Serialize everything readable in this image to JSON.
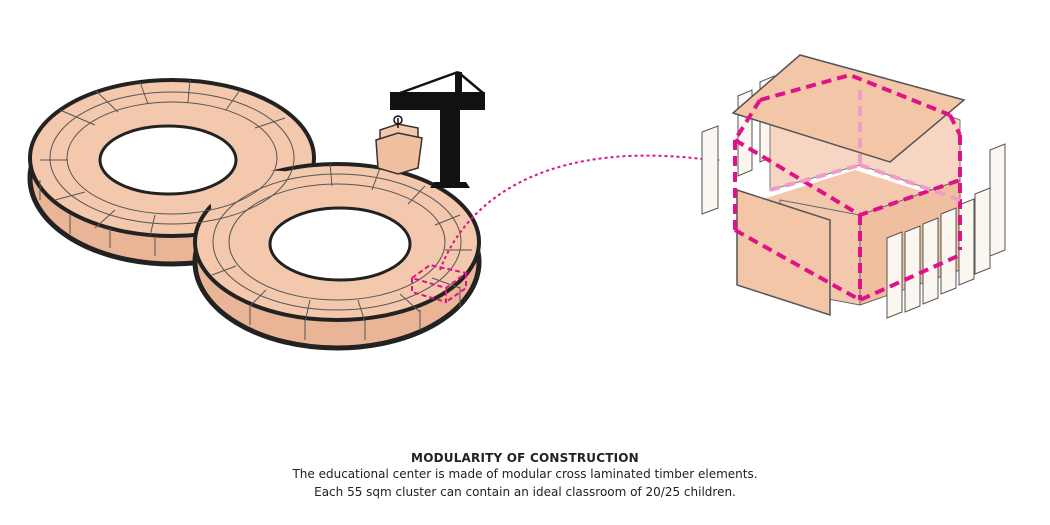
{
  "caption": {
    "title": "MODULARITY OF CONSTRUCTION",
    "line1": "The educational center is made of modular cross laminated timber elements.",
    "line2": "Each 55 sqm cluster can contain an ideal classroom of 20/25 children."
  },
  "colors": {
    "timber": "#f4c8ad",
    "timber_dark": "#e9b596",
    "outline": "#222222",
    "highlight": "#e0128a",
    "crane": "#111111"
  },
  "icons": [
    "crane-icon",
    "arrow-head-icon"
  ]
}
